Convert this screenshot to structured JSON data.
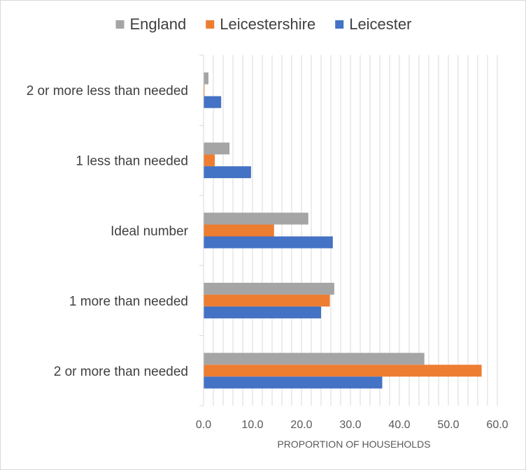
{
  "chart_data": {
    "type": "bar",
    "orientation": "horizontal",
    "categories": [
      "2 or more less than needed",
      "1 less than needed",
      "Ideal number",
      "1 more than needed",
      "2 or more than needed"
    ],
    "series": [
      {
        "name": "England",
        "color": "#a5a5a5",
        "values": [
          1.0,
          5.3,
          21.4,
          26.7,
          45.1
        ]
      },
      {
        "name": "Leicestershire",
        "color": "#ed7d31",
        "values": [
          0.2,
          2.3,
          14.4,
          25.8,
          56.8
        ]
      },
      {
        "name": "Leicester",
        "color": "#4472c4",
        "values": [
          3.6,
          9.7,
          26.4,
          24.0,
          36.5
        ]
      }
    ],
    "xlabel": "PROPORTION OF HOUSEHOLDS",
    "xlim": [
      0,
      60
    ],
    "xticks": [
      "0.0",
      "10.0",
      "20.0",
      "30.0",
      "40.0",
      "50.0",
      "60.0"
    ],
    "minor_grid_step": 2,
    "legend_position": "top"
  }
}
